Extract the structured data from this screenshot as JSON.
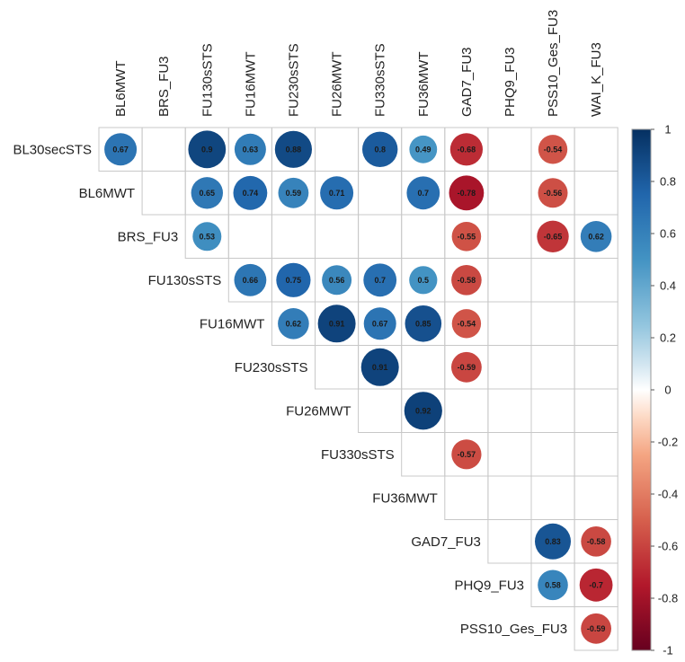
{
  "chart_data": {
    "type": "heatmap",
    "style": "correlation-matrix-upper-triangle-circles",
    "column_labels": [
      "BL6MWT",
      "BRS_FU3",
      "FU130sSTS",
      "FU16MWT",
      "FU230sSTS",
      "FU26MWT",
      "FU330sSTS",
      "FU36MWT",
      "GAD7_FU3",
      "PHQ9_FU3",
      "PSS10_Ges_FU3",
      "WAI_K_FU3"
    ],
    "row_labels": [
      "BL30secSTS",
      "BL6MWT",
      "BRS_FU3",
      "FU130sSTS",
      "FU16MWT",
      "FU230sSTS",
      "FU26MWT",
      "FU330sSTS",
      "FU36MWT",
      "GAD7_FU3",
      "PHQ9_FU3",
      "PSS10_Ges_FU3"
    ],
    "values": [
      [
        0.67,
        null,
        0.9,
        0.63,
        0.88,
        null,
        0.8,
        0.49,
        -0.68,
        null,
        -0.54,
        null
      ],
      [
        null,
        null,
        0.65,
        0.74,
        0.59,
        0.71,
        null,
        0.7,
        -0.78,
        null,
        -0.56,
        null
      ],
      [
        null,
        null,
        0.53,
        null,
        null,
        null,
        null,
        null,
        -0.55,
        null,
        -0.65,
        0.62
      ],
      [
        null,
        null,
        null,
        0.66,
        0.75,
        0.56,
        0.7,
        0.5,
        -0.58,
        null,
        null,
        null
      ],
      [
        null,
        null,
        null,
        null,
        0.62,
        0.91,
        0.67,
        0.85,
        -0.54,
        null,
        null,
        null
      ],
      [
        null,
        null,
        null,
        null,
        null,
        null,
        0.91,
        null,
        -0.59,
        null,
        null,
        null
      ],
      [
        null,
        null,
        null,
        null,
        null,
        null,
        null,
        0.92,
        null,
        null,
        null,
        null
      ],
      [
        null,
        null,
        null,
        null,
        null,
        null,
        null,
        null,
        -0.57,
        null,
        null,
        null
      ],
      [
        null,
        null,
        null,
        null,
        null,
        null,
        null,
        null,
        null,
        null,
        null,
        null
      ],
      [
        null,
        null,
        null,
        null,
        null,
        null,
        null,
        null,
        null,
        null,
        0.83,
        -0.58
      ],
      [
        null,
        null,
        null,
        null,
        null,
        null,
        null,
        null,
        null,
        null,
        0.58,
        -0.7
      ],
      [
        null,
        null,
        null,
        null,
        null,
        null,
        null,
        null,
        null,
        null,
        null,
        -0.59
      ]
    ],
    "color_scale": {
      "range": [
        -1,
        1
      ],
      "ticks": [
        "1",
        "0.8",
        "0.6",
        "0.4",
        "0.2",
        "0",
        "-0.2",
        "-0.4",
        "-0.6",
        "-0.8",
        "-1"
      ],
      "tick_values": [
        1,
        0.8,
        0.6,
        0.4,
        0.2,
        0,
        -0.2,
        -0.4,
        -0.6,
        -0.8,
        -1
      ],
      "stops": [
        {
          "value": -1,
          "color": "#67001f"
        },
        {
          "value": -0.75,
          "color": "#b2182b"
        },
        {
          "value": -0.5,
          "color": "#d6604d"
        },
        {
          "value": -0.25,
          "color": "#f4a582"
        },
        {
          "value": -0.1,
          "color": "#fddbc7"
        },
        {
          "value": 0,
          "color": "#ffffff"
        },
        {
          "value": 0.1,
          "color": "#d1e5f0"
        },
        {
          "value": 0.25,
          "color": "#92c5de"
        },
        {
          "value": 0.5,
          "color": "#4393c3"
        },
        {
          "value": 0.75,
          "color": "#2166ac"
        },
        {
          "value": 1,
          "color": "#053061"
        }
      ]
    },
    "legend": "right",
    "grid": true
  }
}
